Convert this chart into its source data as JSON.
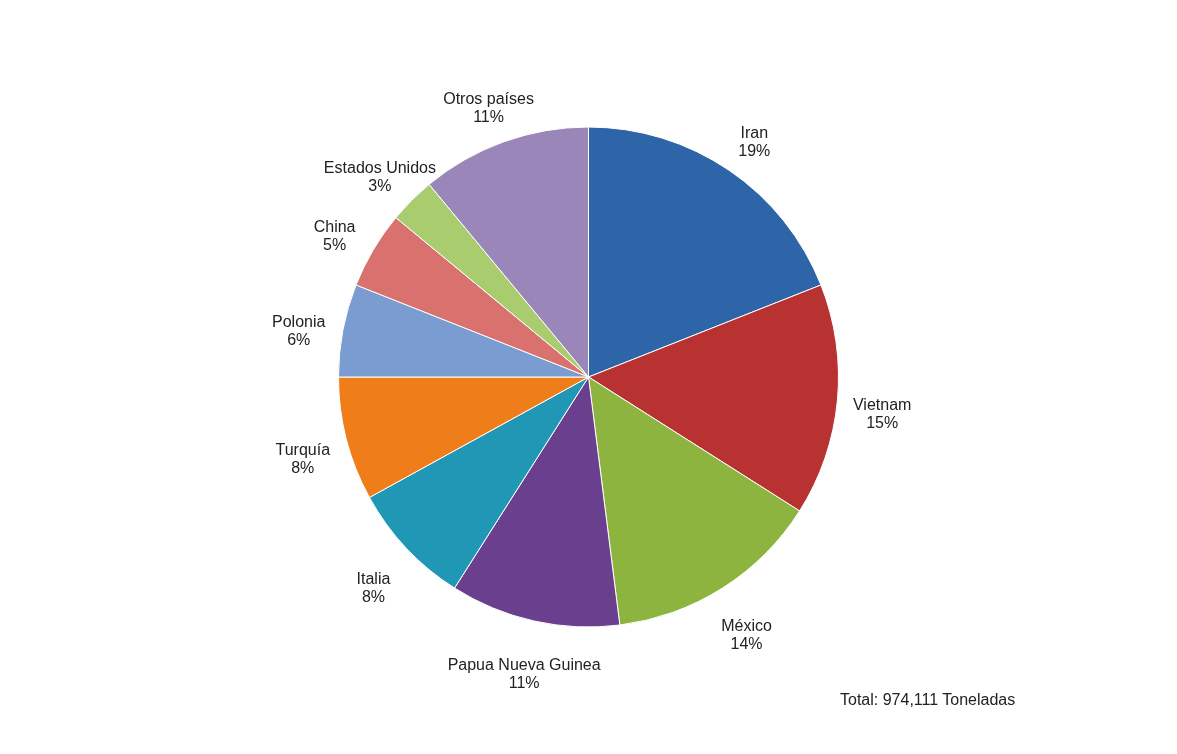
{
  "chart_data": {
    "type": "pie",
    "categories": [
      "Iran",
      "Vietnam",
      "México",
      "Papua Nueva Guinea",
      "Italia",
      "Turquía",
      "Polonia",
      "China",
      "Estados Unidos",
      "Otros países"
    ],
    "values": [
      19,
      15,
      14,
      11,
      8,
      8,
      6,
      5,
      3,
      11
    ],
    "colors": [
      "#2e65a8",
      "#b83232",
      "#8db43e",
      "#6a3f8e",
      "#1f97b5",
      "#ef7e1a",
      "#7a9cd0",
      "#d9726e",
      "#a9cc6f",
      "#9a86b8"
    ],
    "value_labels": [
      "19%",
      "15%",
      "14%",
      "11%",
      "8%",
      "8%",
      "6%",
      "5%",
      "3%",
      "11%"
    ],
    "legend": false,
    "annotations": [
      "Total: 974,111  Toneladas"
    ]
  }
}
